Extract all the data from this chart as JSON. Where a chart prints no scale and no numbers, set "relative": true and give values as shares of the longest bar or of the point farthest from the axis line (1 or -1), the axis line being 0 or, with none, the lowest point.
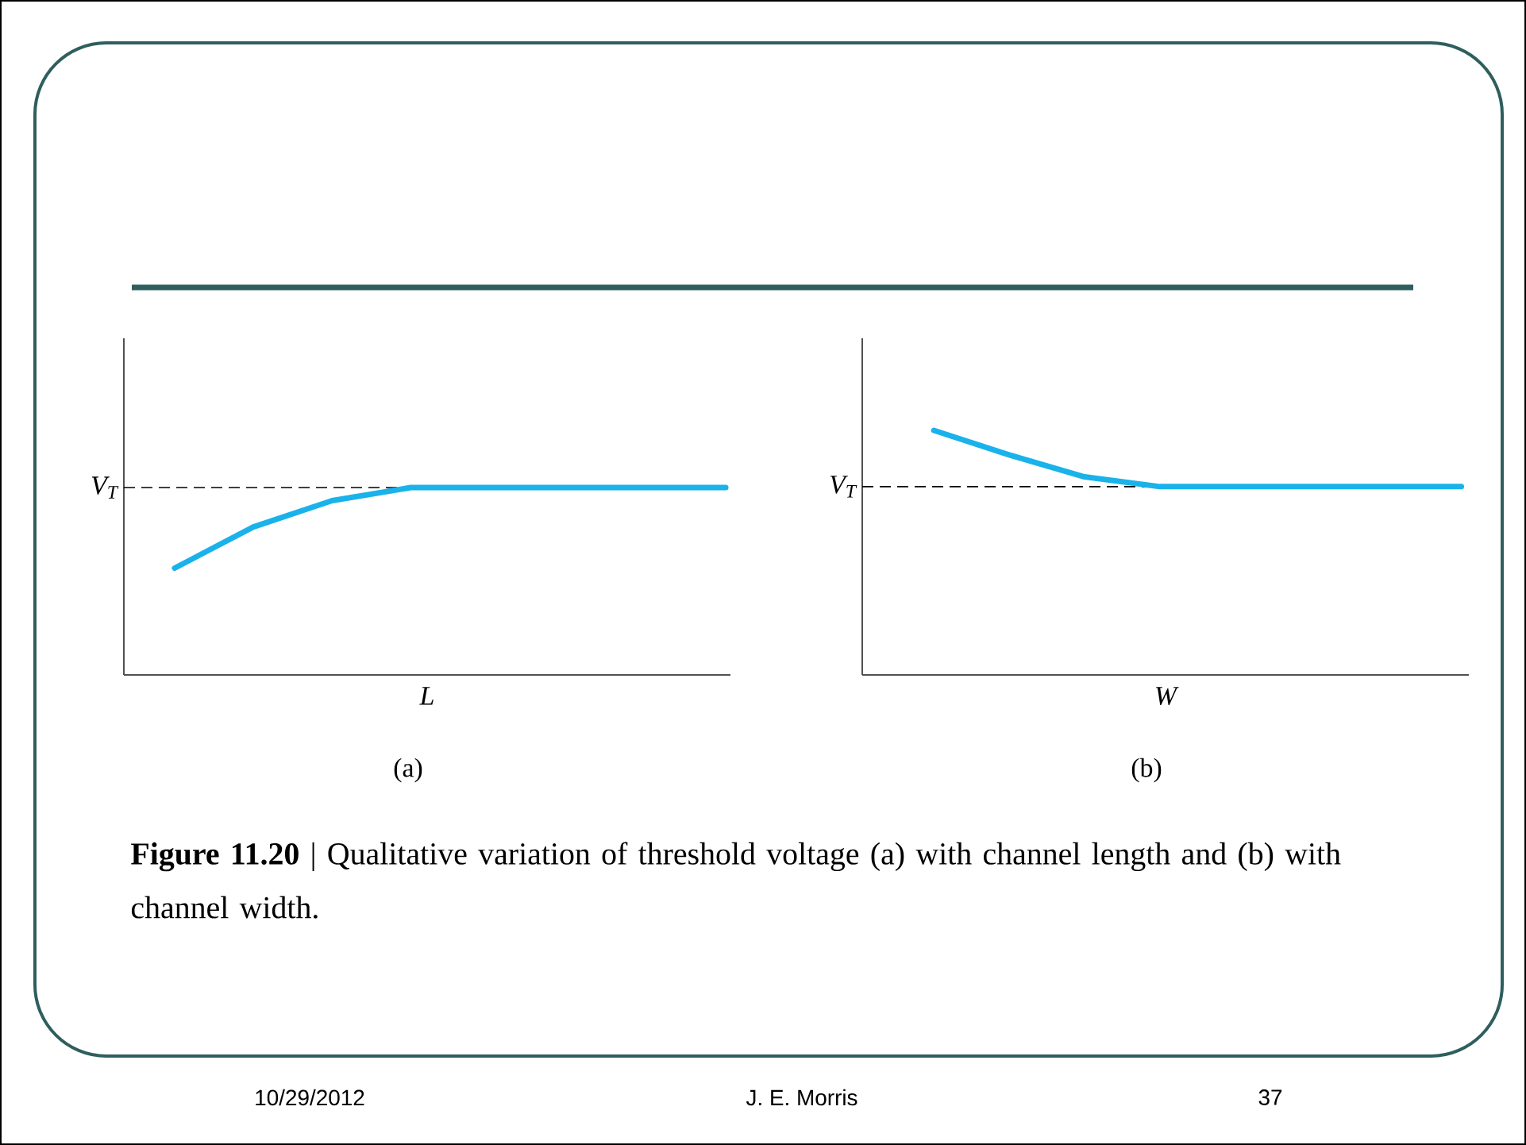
{
  "chart_data": [
    {
      "type": "line",
      "relative": true,
      "categories": [
        null,
        null,
        null,
        null,
        null,
        null,
        null,
        null
      ],
      "xlabel": "L",
      "subtitle": "(a)",
      "marker": "none",
      "line_style": "solid",
      "series": [
        {
          "color": "#1ab2ea",
          "values": [
            0.57,
            0.79,
            0.93,
            1,
            1,
            1,
            1,
            1
          ]
        }
      ],
      "ref_lines": [
        {
          "axis": "y",
          "value": 1,
          "label": "V$_{T}$",
          "line_style": "dashed",
          "color": "#000000"
        }
      ],
      "annotations": [
        "**Figure 11.20** | Qualitative variation of threshold voltage (a) with channel length and (b) with channel width.",
        "10/29/2012",
        "J. E. Morris",
        "37"
      ]
    },
    {
      "type": "line",
      "relative": true,
      "categories": [
        null,
        null,
        null,
        null,
        null,
        null,
        null,
        null
      ],
      "xlabel": "W",
      "subtitle": "(b)",
      "marker": "none",
      "line_style": "solid",
      "series": [
        {
          "color": "#1ab2ea",
          "values": [
            1,
            0.9,
            0.81,
            0.77,
            0.77,
            0.77,
            0.77,
            0.77
          ]
        }
      ],
      "ref_lines": [
        {
          "axis": "y",
          "value": 0.77,
          "label": "V$_{T}$",
          "line_style": "dashed",
          "color": "#000000"
        }
      ]
    }
  ]
}
